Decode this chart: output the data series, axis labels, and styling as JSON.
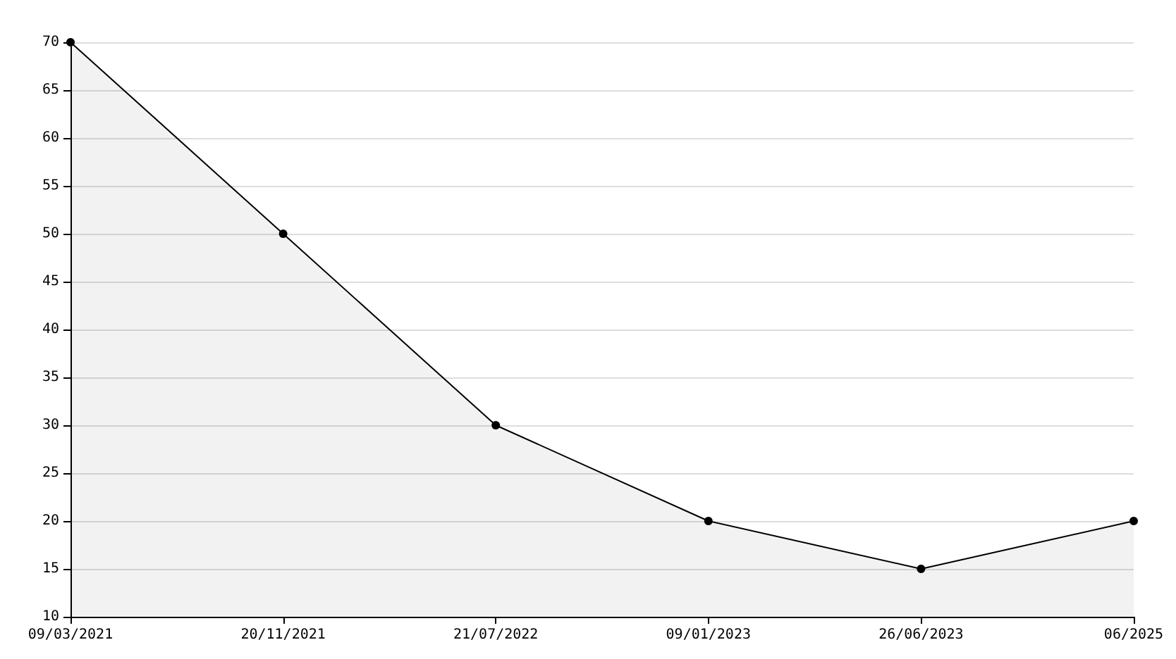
{
  "chart_data": {
    "type": "area",
    "categories": [
      "09/03/2021",
      "20/11/2021",
      "21/07/2022",
      "09/01/2023",
      "26/06/2023",
      "06/2025"
    ],
    "series": [
      {
        "color": "#000000",
        "values": [
          70,
          50,
          30,
          20,
          15,
          20
        ]
      }
    ],
    "ylim": [
      10,
      70
    ],
    "yticks": [
      10,
      15,
      20,
      25,
      30,
      35,
      40,
      45,
      50,
      55,
      60,
      65,
      70
    ],
    "grid": "y",
    "marker": "circle",
    "line_style": "solid"
  }
}
